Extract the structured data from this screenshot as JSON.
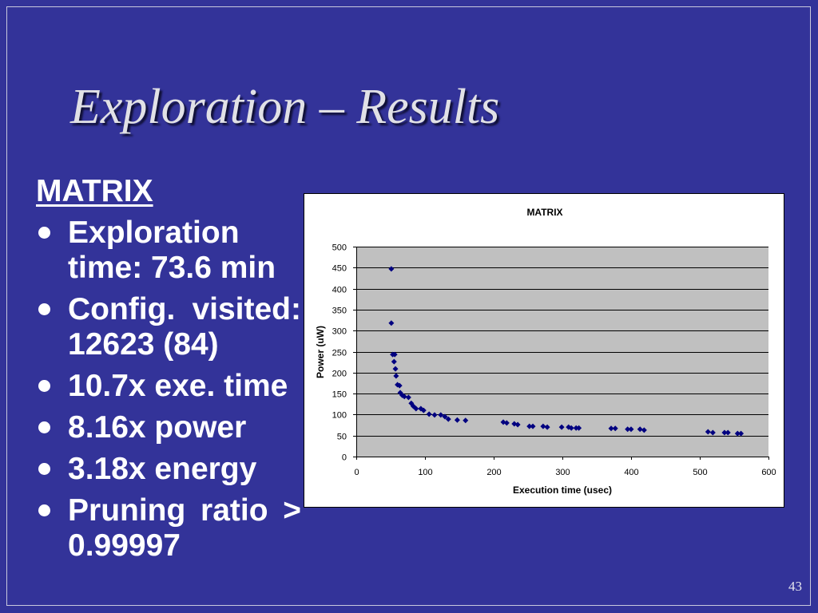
{
  "slide": {
    "title": "Exploration – Results",
    "background_color": "#333399",
    "slide_number": "43"
  },
  "left_panel": {
    "heading": "MATRIX",
    "bullets": [
      "Exploration time: 73.6 min",
      "Config. visited: 12623 (84)",
      "10.7x exe. time",
      "8.16x power",
      "3.18x energy",
      "Pruning ratio > 0.99997"
    ]
  },
  "chart_data": {
    "type": "scatter",
    "title": "MATRIX",
    "xlabel": "Execution time (usec)",
    "ylabel": "Power (uW)",
    "xlim": [
      0,
      600
    ],
    "ylim": [
      0,
      500
    ],
    "x_ticks": [
      0,
      100,
      200,
      300,
      400,
      500,
      600
    ],
    "y_ticks": [
      0,
      50,
      100,
      150,
      200,
      250,
      300,
      350,
      400,
      450,
      500
    ],
    "grid": true,
    "grid_axis": "y",
    "legend": "none",
    "marker": "diamond",
    "marker_color": "#000080",
    "plot_background": "#c0c0c0",
    "series": [
      {
        "x": [
          51,
          51,
          53,
          56,
          55,
          57,
          58,
          60,
          63,
          64,
          67,
          70,
          76,
          80,
          83,
          87,
          94,
          98,
          106,
          114,
          123,
          129,
          134,
          147,
          159,
          214,
          219,
          230,
          235,
          252,
          257,
          272,
          278,
          299,
          309,
          313,
          320,
          324,
          371,
          377,
          395,
          400,
          413,
          419,
          512,
          519,
          536,
          541,
          555,
          560
        ],
        "y": [
          447,
          318,
          243,
          243,
          226,
          209,
          192,
          171,
          169,
          152,
          146,
          143,
          141,
          127,
          120,
          114,
          114,
          110,
          101,
          99,
          99,
          95,
          89,
          87,
          86,
          82,
          80,
          78,
          76,
          72,
          72,
          72,
          70,
          70,
          70,
          68,
          68,
          68,
          67,
          67,
          65,
          65,
          65,
          63,
          59,
          57,
          57,
          57,
          55,
          55
        ]
      }
    ]
  }
}
